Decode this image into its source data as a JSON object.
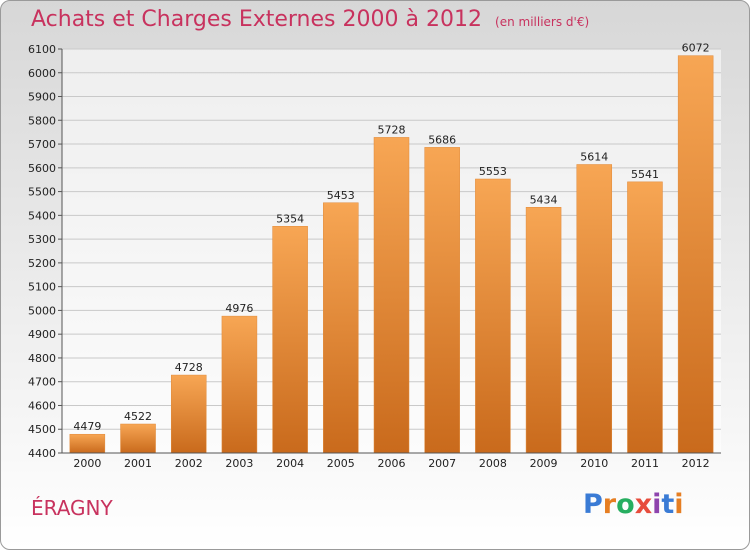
{
  "header": {
    "title": "Achats et Charges Externes 2000 à 2012",
    "unit": "(en milliers d'€)"
  },
  "footer": {
    "commune": "ÉRAGNY",
    "logo_text": "Proxiti",
    "logo_colors": [
      "#3a7bd5",
      "#e67e22",
      "#27ae60",
      "#e74c3c",
      "#8e44ad",
      "#3a7bd5",
      "#e67e22"
    ]
  },
  "chart_data": {
    "type": "bar",
    "title": "Achats et Charges Externes 2000 à 2012",
    "unit": "(en milliers d'€)",
    "categories": [
      "2000",
      "2001",
      "2002",
      "2003",
      "2004",
      "2005",
      "2006",
      "2007",
      "2008",
      "2009",
      "2010",
      "2011",
      "2012"
    ],
    "values": [
      4479,
      4522,
      4728,
      4976,
      5354,
      5453,
      5728,
      5686,
      5553,
      5434,
      5614,
      5541,
      6072
    ],
    "ylim": [
      4400,
      6100
    ],
    "yticks": [
      4400,
      4500,
      4600,
      4700,
      4800,
      4900,
      5000,
      5100,
      5200,
      5300,
      5400,
      5500,
      5600,
      5700,
      5800,
      5900,
      6000,
      6100
    ],
    "grid": true,
    "bar_color_top": "#f7a654",
    "bar_color_bottom": "#c96a1c"
  }
}
